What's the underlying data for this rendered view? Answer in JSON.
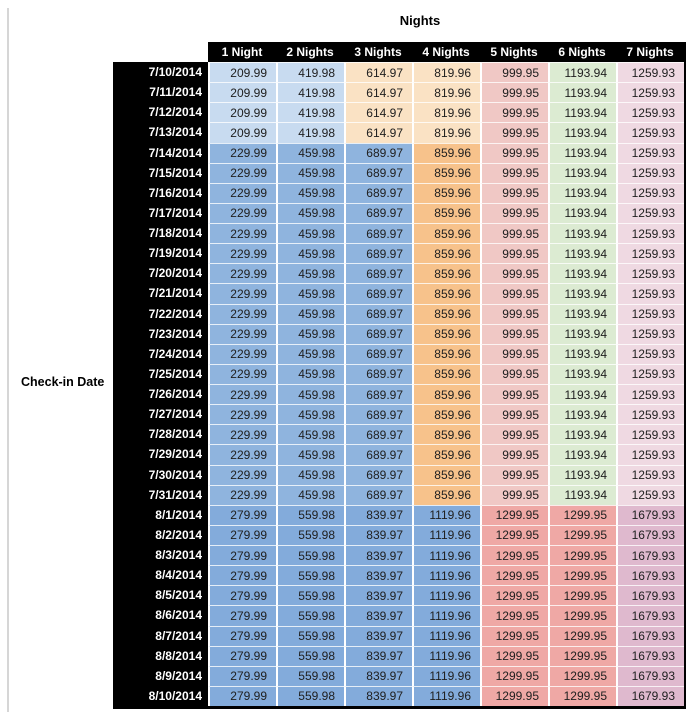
{
  "chart_data": {
    "type": "heatmap",
    "title": "Nights",
    "row_axis_label": "Check-in Date",
    "legend_position": "none",
    "columns": [
      "1 Night",
      "2 Nights",
      "3 Nights",
      "4 Nights",
      "5 Nights",
      "6 Nights",
      "7 Nights"
    ],
    "header_bg": "#000000",
    "header_text_color": "#ffffff",
    "value_text_color": "#202020",
    "band_colors": {
      "jul_early": [
        "#C8DBF0",
        "#C8DBF0",
        "#FAE2C4",
        "#FAE2C4",
        "#F0C8C5",
        "#DCEBD2",
        "#EFD9E2"
      ],
      "jul_peak": [
        "#8FB4DE",
        "#8FB4DE",
        "#8FB4DE",
        "#F7C28B",
        "#F0C8C5",
        "#DCEBD2",
        "#EFD9E2"
      ],
      "august": [
        "#83ABDB",
        "#83ABDB",
        "#83ABDB",
        "#83ABDB",
        "#EFA8A5",
        "#EFA8A5",
        "#DFB9CE"
      ]
    },
    "rows": [
      {
        "date": "7/10/2014",
        "band": "jul_early",
        "values": [
          209.99,
          419.98,
          614.97,
          819.96,
          999.95,
          1193.94,
          1259.93
        ]
      },
      {
        "date": "7/11/2014",
        "band": "jul_early",
        "values": [
          209.99,
          419.98,
          614.97,
          819.96,
          999.95,
          1193.94,
          1259.93
        ]
      },
      {
        "date": "7/12/2014",
        "band": "jul_early",
        "values": [
          209.99,
          419.98,
          614.97,
          819.96,
          999.95,
          1193.94,
          1259.93
        ]
      },
      {
        "date": "7/13/2014",
        "band": "jul_early",
        "values": [
          209.99,
          419.98,
          614.97,
          819.96,
          999.95,
          1193.94,
          1259.93
        ]
      },
      {
        "date": "7/14/2014",
        "band": "jul_peak",
        "values": [
          229.99,
          459.98,
          689.97,
          859.96,
          999.95,
          1193.94,
          1259.93
        ]
      },
      {
        "date": "7/15/2014",
        "band": "jul_peak",
        "values": [
          229.99,
          459.98,
          689.97,
          859.96,
          999.95,
          1193.94,
          1259.93
        ]
      },
      {
        "date": "7/16/2014",
        "band": "jul_peak",
        "values": [
          229.99,
          459.98,
          689.97,
          859.96,
          999.95,
          1193.94,
          1259.93
        ]
      },
      {
        "date": "7/17/2014",
        "band": "jul_peak",
        "values": [
          229.99,
          459.98,
          689.97,
          859.96,
          999.95,
          1193.94,
          1259.93
        ]
      },
      {
        "date": "7/18/2014",
        "band": "jul_peak",
        "values": [
          229.99,
          459.98,
          689.97,
          859.96,
          999.95,
          1193.94,
          1259.93
        ]
      },
      {
        "date": "7/19/2014",
        "band": "jul_peak",
        "values": [
          229.99,
          459.98,
          689.97,
          859.96,
          999.95,
          1193.94,
          1259.93
        ]
      },
      {
        "date": "7/20/2014",
        "band": "jul_peak",
        "values": [
          229.99,
          459.98,
          689.97,
          859.96,
          999.95,
          1193.94,
          1259.93
        ]
      },
      {
        "date": "7/21/2014",
        "band": "jul_peak",
        "values": [
          229.99,
          459.98,
          689.97,
          859.96,
          999.95,
          1193.94,
          1259.93
        ]
      },
      {
        "date": "7/22/2014",
        "band": "jul_peak",
        "values": [
          229.99,
          459.98,
          689.97,
          859.96,
          999.95,
          1193.94,
          1259.93
        ]
      },
      {
        "date": "7/23/2014",
        "band": "jul_peak",
        "values": [
          229.99,
          459.98,
          689.97,
          859.96,
          999.95,
          1193.94,
          1259.93
        ]
      },
      {
        "date": "7/24/2014",
        "band": "jul_peak",
        "values": [
          229.99,
          459.98,
          689.97,
          859.96,
          999.95,
          1193.94,
          1259.93
        ]
      },
      {
        "date": "7/25/2014",
        "band": "jul_peak",
        "values": [
          229.99,
          459.98,
          689.97,
          859.96,
          999.95,
          1193.94,
          1259.93
        ]
      },
      {
        "date": "7/26/2014",
        "band": "jul_peak",
        "values": [
          229.99,
          459.98,
          689.97,
          859.96,
          999.95,
          1193.94,
          1259.93
        ]
      },
      {
        "date": "7/27/2014",
        "band": "jul_peak",
        "values": [
          229.99,
          459.98,
          689.97,
          859.96,
          999.95,
          1193.94,
          1259.93
        ]
      },
      {
        "date": "7/28/2014",
        "band": "jul_peak",
        "values": [
          229.99,
          459.98,
          689.97,
          859.96,
          999.95,
          1193.94,
          1259.93
        ]
      },
      {
        "date": "7/29/2014",
        "band": "jul_peak",
        "values": [
          229.99,
          459.98,
          689.97,
          859.96,
          999.95,
          1193.94,
          1259.93
        ]
      },
      {
        "date": "7/30/2014",
        "band": "jul_peak",
        "values": [
          229.99,
          459.98,
          689.97,
          859.96,
          999.95,
          1193.94,
          1259.93
        ]
      },
      {
        "date": "7/31/2014",
        "band": "jul_peak",
        "values": [
          229.99,
          459.98,
          689.97,
          859.96,
          999.95,
          1193.94,
          1259.93
        ]
      },
      {
        "date": "8/1/2014",
        "band": "august",
        "values": [
          279.99,
          559.98,
          839.97,
          1119.96,
          1299.95,
          1299.95,
          1679.93
        ]
      },
      {
        "date": "8/2/2014",
        "band": "august",
        "values": [
          279.99,
          559.98,
          839.97,
          1119.96,
          1299.95,
          1299.95,
          1679.93
        ]
      },
      {
        "date": "8/3/2014",
        "band": "august",
        "values": [
          279.99,
          559.98,
          839.97,
          1119.96,
          1299.95,
          1299.95,
          1679.93
        ]
      },
      {
        "date": "8/4/2014",
        "band": "august",
        "values": [
          279.99,
          559.98,
          839.97,
          1119.96,
          1299.95,
          1299.95,
          1679.93
        ]
      },
      {
        "date": "8/5/2014",
        "band": "august",
        "values": [
          279.99,
          559.98,
          839.97,
          1119.96,
          1299.95,
          1299.95,
          1679.93
        ]
      },
      {
        "date": "8/6/2014",
        "band": "august",
        "values": [
          279.99,
          559.98,
          839.97,
          1119.96,
          1299.95,
          1299.95,
          1679.93
        ]
      },
      {
        "date": "8/7/2014",
        "band": "august",
        "values": [
          279.99,
          559.98,
          839.97,
          1119.96,
          1299.95,
          1299.95,
          1679.93
        ]
      },
      {
        "date": "8/8/2014",
        "band": "august",
        "values": [
          279.99,
          559.98,
          839.97,
          1119.96,
          1299.95,
          1299.95,
          1679.93
        ]
      },
      {
        "date": "8/9/2014",
        "band": "august",
        "values": [
          279.99,
          559.98,
          839.97,
          1119.96,
          1299.95,
          1299.95,
          1679.93
        ]
      },
      {
        "date": "8/10/2014",
        "band": "august",
        "values": [
          279.99,
          559.98,
          839.97,
          1119.96,
          1299.95,
          1299.95,
          1679.93
        ]
      }
    ]
  }
}
